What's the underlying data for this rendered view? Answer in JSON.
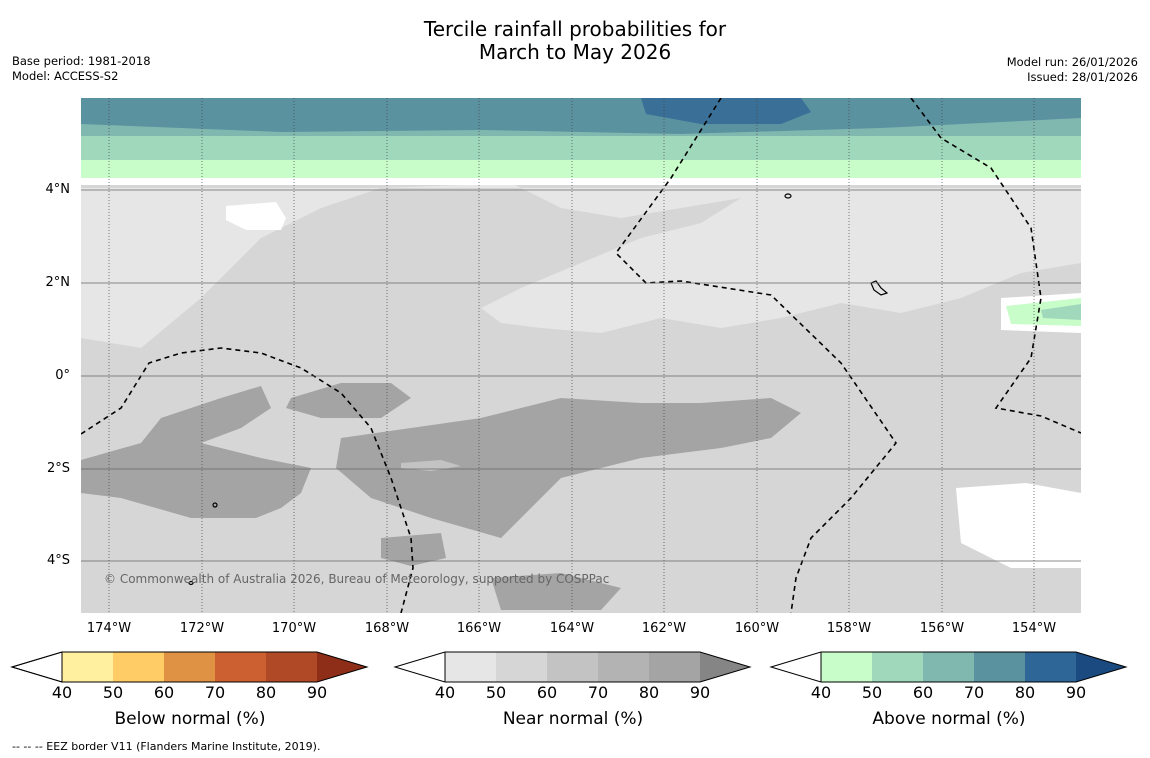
{
  "title_line1": "Tercile rainfall probabilities for",
  "title_line2": "March to May 2026",
  "base_period": "Base period: 1981-2018",
  "model": "Model: ACCESS-S2",
  "model_run": "Model run: 26/01/2026",
  "issued": "Issued: 28/01/2026",
  "map": {
    "lat_labels": [
      "4°N",
      "2°N",
      "0°",
      "2°S",
      "4°S"
    ],
    "lon_labels": [
      "174°W",
      "172°W",
      "170°W",
      "168°W",
      "166°W",
      "164°W",
      "162°W",
      "160°W",
      "158°W",
      "156°W",
      "154°W"
    ],
    "copyright": "© Commonwealth of Australia 2026, Bureau of Meteorology, supported by COSPPac"
  },
  "colorbars": [
    {
      "label": "Below normal (%)",
      "ticks": [
        "40",
        "50",
        "60",
        "70",
        "80",
        "90"
      ],
      "colors": [
        "#ffffff",
        "#fff0a0",
        "#ffcc66",
        "#e09244",
        "#cc6030",
        "#b04a26",
        "#8f2e18"
      ]
    },
    {
      "label": "Near normal (%)",
      "ticks": [
        "40",
        "50",
        "60",
        "70",
        "80",
        "90"
      ],
      "colors": [
        "#ffffff",
        "#e6e6e6",
        "#d6d6d6",
        "#c3c3c3",
        "#b3b3b3",
        "#a4a4a4",
        "#858585"
      ]
    },
    {
      "label": "Above normal (%)",
      "ticks": [
        "40",
        "50",
        "60",
        "70",
        "80",
        "90"
      ],
      "colors": [
        "#ffffff",
        "#c8fcc8",
        "#a0d8bc",
        "#80b8b0",
        "#5a92a0",
        "#2e6698",
        "#1a4a80"
      ]
    }
  ],
  "footnote": "--  --  -- EEZ border V11 (Flanders Marine Institute, 2019)."
}
